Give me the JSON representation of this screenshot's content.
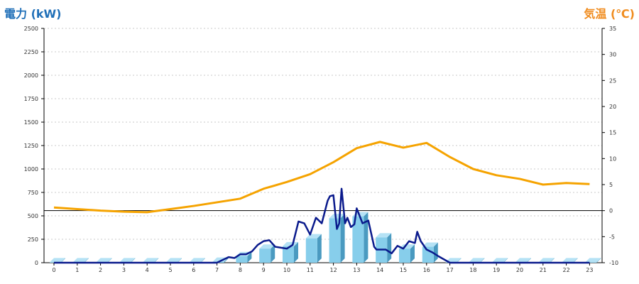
{
  "chart_data": {
    "type": "bar+line",
    "left_axis": {
      "label": "電力 (kW)",
      "ylim": [
        0,
        2500
      ],
      "ticks": [
        0,
        250,
        500,
        750,
        1000,
        1250,
        1500,
        1750,
        2000,
        2250,
        2500
      ]
    },
    "right_axis": {
      "label": "気温 (℃)",
      "ylim": [
        -10,
        35
      ],
      "ticks": [
        -10,
        -5,
        0,
        5,
        10,
        15,
        20,
        25,
        30,
        35
      ]
    },
    "x_ticks": [
      "0",
      "1",
      "2",
      "3",
      "4",
      "5",
      "6",
      "7",
      "8",
      "9",
      "10",
      "11",
      "12",
      "13",
      "14",
      "15",
      "16",
      "17",
      "18",
      "19",
      "20",
      "21",
      "22",
      "23"
    ],
    "grid": "horizontal-dashed",
    "colors": {
      "bars": "#87ceeb",
      "bars_side": "#4a9ac0",
      "power_line": "#0a1a8c",
      "temp_line": "#f5a300",
      "axis_left": "#1f6fb8",
      "axis_right": "#f08c1e"
    },
    "hourly_power_bars": {
      "hours": [
        0,
        1,
        2,
        3,
        4,
        5,
        6,
        7,
        8,
        9,
        10,
        11,
        12,
        13,
        14,
        15,
        16,
        17,
        18,
        19,
        20,
        21,
        22,
        23
      ],
      "values": [
        5,
        5,
        5,
        5,
        5,
        5,
        5,
        10,
        70,
        150,
        175,
        260,
        475,
        495,
        270,
        150,
        170,
        5,
        5,
        5,
        5,
        5,
        5,
        5
      ]
    },
    "power_line": {
      "x": [
        0,
        1,
        2,
        3,
        4,
        5,
        6,
        7,
        7.25,
        7.5,
        7.75,
        8,
        8.25,
        8.5,
        8.75,
        9,
        9.25,
        9.5,
        9.75,
        10,
        10.25,
        10.5,
        10.75,
        11,
        11.25,
        11.5,
        11.75,
        11.85,
        12,
        12.15,
        12.25,
        12.35,
        12.5,
        12.6,
        12.75,
        12.9,
        13,
        13.25,
        13.5,
        13.75,
        13.85,
        14,
        14.25,
        14.5,
        14.75,
        15,
        15.25,
        15.5,
        15.6,
        15.75,
        16,
        16.25,
        16.5,
        17,
        18,
        19,
        20,
        21,
        22,
        23
      ],
      "values": [
        0,
        0,
        0,
        0,
        0,
        0,
        0,
        0,
        30,
        60,
        50,
        90,
        90,
        120,
        190,
        230,
        240,
        170,
        160,
        150,
        190,
        440,
        420,
        300,
        480,
        420,
        660,
        710,
        720,
        360,
        420,
        790,
        420,
        480,
        380,
        410,
        580,
        420,
        450,
        170,
        140,
        140,
        140,
        100,
        180,
        150,
        230,
        210,
        330,
        230,
        140,
        110,
        70,
        0,
        0,
        0,
        0,
        0,
        0,
        0
      ]
    },
    "temperature_line": {
      "hours": [
        0,
        1,
        2,
        3,
        4,
        5,
        6,
        7,
        8,
        9,
        10,
        11,
        12,
        13,
        14,
        15,
        16,
        17,
        18,
        19,
        20,
        21,
        22,
        23
      ],
      "values": [
        0.6,
        0.3,
        0.0,
        -0.2,
        -0.3,
        0.3,
        0.9,
        1.6,
        2.3,
        4.2,
        5.5,
        7.0,
        9.3,
        12.0,
        13.2,
        12.1,
        13.0,
        10.3,
        8.0,
        6.8,
        6.1,
        5.0,
        5.3,
        5.1
      ]
    }
  }
}
